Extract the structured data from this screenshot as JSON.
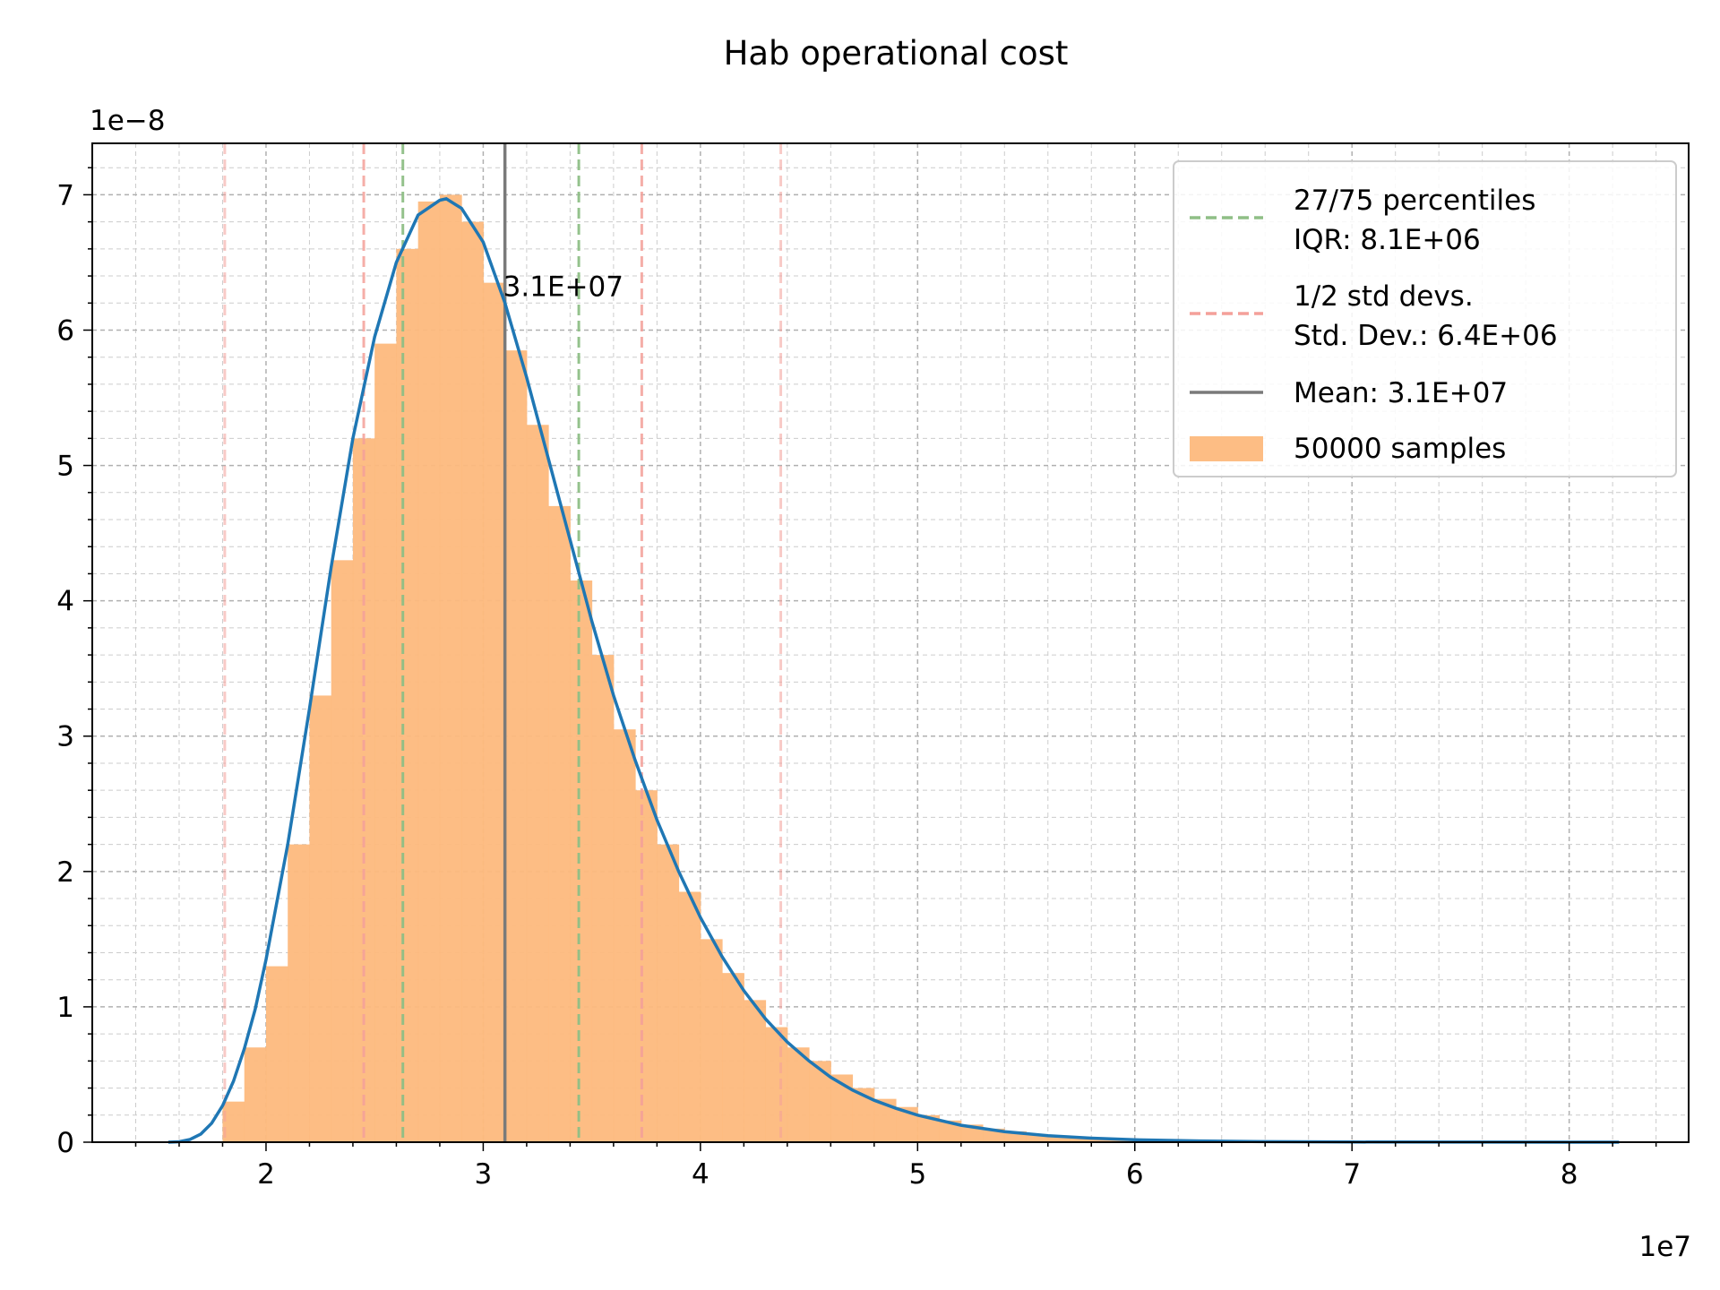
{
  "chart_data": {
    "type": "bar",
    "title": "Hab operational cost",
    "xlabel": "",
    "ylabel": "",
    "x_offset_label": "1e7",
    "y_offset_label": "1e−8",
    "xlim": [
      12000000,
      85500000
    ],
    "ylim": [
      0,
      7.38e-08
    ],
    "x_ticks": [
      20000000,
      30000000,
      40000000,
      50000000,
      60000000,
      70000000,
      80000000
    ],
    "x_tick_labels": [
      "2",
      "3",
      "4",
      "5",
      "6",
      "7",
      "8"
    ],
    "y_ticks": [
      0,
      1e-08,
      2e-08,
      3e-08,
      4e-08,
      5e-08,
      6e-08,
      7e-08
    ],
    "y_tick_labels": [
      "0",
      "1",
      "2",
      "3",
      "4",
      "5",
      "6",
      "7"
    ],
    "grid": true,
    "histogram": {
      "name": "50000 samples",
      "color": "#fdb97d",
      "bin_width": 1000000,
      "bin_starts": [
        18000000,
        19000000,
        20000000,
        21000000,
        22000000,
        23000000,
        24000000,
        25000000,
        26000000,
        27000000,
        28000000,
        29000000,
        30000000,
        31000000,
        32000000,
        33000000,
        34000000,
        35000000,
        36000000,
        37000000,
        38000000,
        39000000,
        40000000,
        41000000,
        42000000,
        43000000,
        44000000,
        45000000,
        46000000,
        47000000,
        48000000,
        49000000,
        50000000,
        51000000,
        52000000,
        53000000,
        54000000,
        55000000,
        56000000,
        57000000,
        58000000,
        59000000,
        60000000
      ],
      "values": [
        3e-09,
        7e-09,
        1.3e-08,
        2.2e-08,
        3.3e-08,
        4.3e-08,
        5.2e-08,
        5.9e-08,
        6.6e-08,
        6.95e-08,
        7e-08,
        6.8e-08,
        6.35e-08,
        5.85e-08,
        5.3e-08,
        4.7e-08,
        4.15e-08,
        3.6e-08,
        3.05e-08,
        2.6e-08,
        2.2e-08,
        1.85e-08,
        1.5e-08,
        1.25e-08,
        1.05e-08,
        8.5e-09,
        7e-09,
        6e-09,
        5e-09,
        4e-09,
        3.2e-09,
        2.6e-09,
        2e-09,
        1.6e-09,
        1.3e-09,
        1e-09,
        8e-10,
        6e-10,
        5e-10,
        4e-10,
        3e-10,
        2e-10,
        1e-10
      ]
    },
    "pdf_curve": {
      "color": "#1f77b4",
      "x": [
        15500000,
        16000000,
        16500000,
        17000000,
        17500000,
        18000000,
        18500000,
        19000000,
        19500000,
        20000000,
        21000000,
        22000000,
        23000000,
        24000000,
        25000000,
        26000000,
        27000000,
        28000000,
        28300000,
        29000000,
        30000000,
        31000000,
        32000000,
        33000000,
        34000000,
        35000000,
        36000000,
        37000000,
        38000000,
        39000000,
        40000000,
        41000000,
        42000000,
        43000000,
        44000000,
        45000000,
        46000000,
        47000000,
        48000000,
        49000000,
        50000000,
        52000000,
        54000000,
        56000000,
        58000000,
        60000000,
        63000000,
        66000000,
        70000000,
        75000000,
        80000000,
        82300000
      ],
      "y": [
        0,
        3e-11,
        2e-10,
        6e-10,
        1.4e-09,
        2.7e-09,
        4.5e-09,
        6.9e-09,
        9.8e-09,
        1.35e-08,
        2.2e-08,
        3.2e-08,
        4.25e-08,
        5.2e-08,
        5.95e-08,
        6.5e-08,
        6.85e-08,
        6.96e-08,
        6.97e-08,
        6.9e-08,
        6.65e-08,
        6.2e-08,
        5.65e-08,
        5.05e-08,
        4.45e-08,
        3.85e-08,
        3.3e-08,
        2.82e-08,
        2.38e-08,
        2e-08,
        1.66e-08,
        1.37e-08,
        1.12e-08,
        9.1e-09,
        7.4e-09,
        6e-09,
        4.8e-09,
        3.85e-09,
        3.1e-09,
        2.5e-09,
        2e-09,
        1.25e-09,
        7.8e-10,
        4.8e-10,
        3e-10,
        1.8e-10,
        9e-11,
        4e-11,
        1.5e-11,
        5e-12,
        1e-12,
        0
      ]
    },
    "mean": {
      "value": 31000000,
      "label": "Mean: 3.1E+07",
      "annotation": "3.1E+07",
      "color": "#7a7a7a"
    },
    "percentiles": {
      "values": [
        26300000,
        34400000
      ],
      "label": "27/75 percentiles\nIQR: 8.1E+06",
      "color": "#8fbf86"
    },
    "std_devs": {
      "one_sd": [
        24500000,
        37300000
      ],
      "two_sd": [
        18100000,
        43700000
      ],
      "label": "1/2 std devs.\n Std. Dev.: 6.4E+06",
      "color": "#f4a09a"
    },
    "legend": {
      "placement": "top-right",
      "entries": [
        {
          "lines": [
            "27/75 percentiles",
            "IQR: 8.1E+06"
          ],
          "style": "dashed",
          "color": "#8fbf86"
        },
        {
          "lines": [
            "1/2 std devs.",
            " Std. Dev.: 6.4E+06"
          ],
          "style": "dashed",
          "color": "#f4a09a"
        },
        {
          "lines": [
            "Mean: 3.1E+07"
          ],
          "style": "solid",
          "color": "#7a7a7a"
        },
        {
          "lines": [
            "50000 samples"
          ],
          "style": "patch",
          "color": "#fdb97d"
        }
      ]
    }
  }
}
